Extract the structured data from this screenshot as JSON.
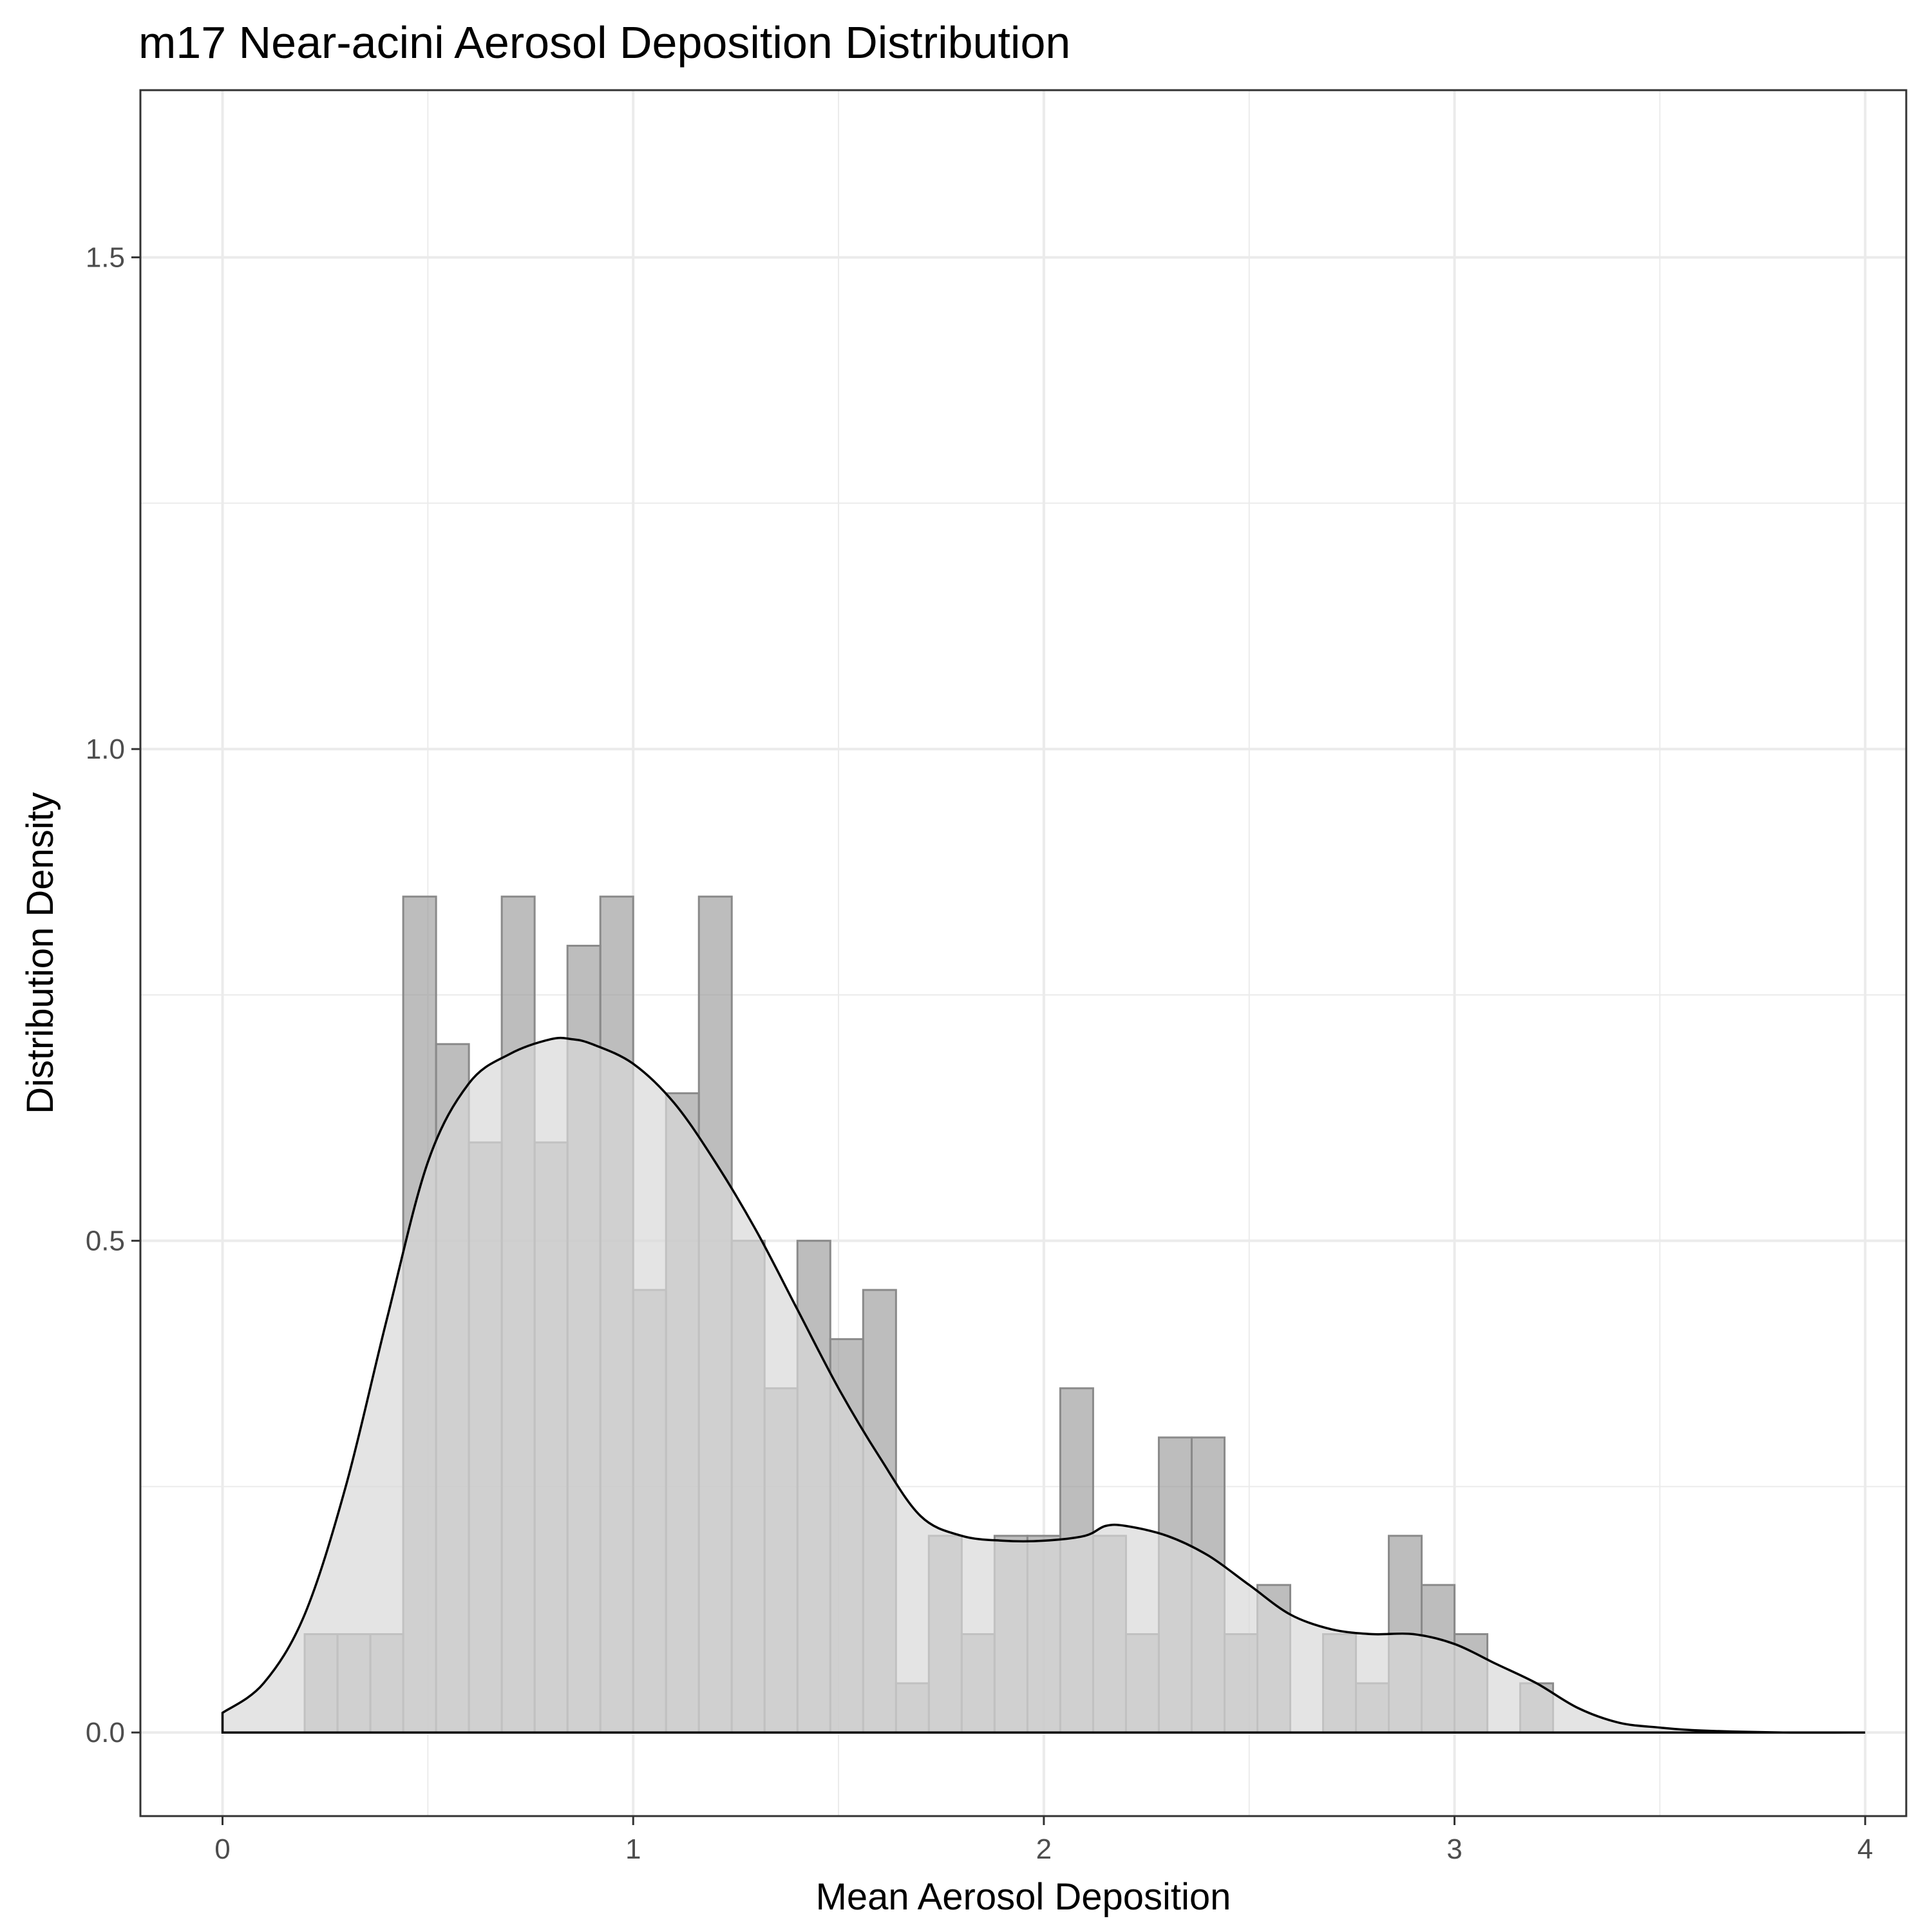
{
  "chart_data": {
    "type": "bar",
    "title": "m17 Near-acini Aerosol Deposition Distribution",
    "xlabel": "Mean Aerosol Deposition",
    "ylabel": "Distribution Density",
    "xlim": [
      -0.2,
      4.1
    ],
    "ylim": [
      -0.085,
      1.67
    ],
    "x_ticks": [
      0,
      1,
      2,
      3,
      4
    ],
    "x_tick_labels": [
      "0",
      "1",
      "2",
      "3",
      "4"
    ],
    "y_ticks": [
      0.0,
      0.5,
      1.0,
      1.5
    ],
    "y_tick_labels": [
      "0.0",
      "0.5",
      "1.0",
      "1.5"
    ],
    "grid": true,
    "legend": "none",
    "histogram": {
      "bin_width": 0.08,
      "bins": [
        {
          "x0": 0.2,
          "x1": 0.28,
          "density": 0.1
        },
        {
          "x0": 0.28,
          "x1": 0.36,
          "density": 0.1
        },
        {
          "x0": 0.36,
          "x1": 0.44,
          "density": 0.1
        },
        {
          "x0": 0.44,
          "x1": 0.52,
          "density": 0.85
        },
        {
          "x0": 0.52,
          "x1": 0.6,
          "density": 0.7
        },
        {
          "x0": 0.6,
          "x1": 0.68,
          "density": 0.6
        },
        {
          "x0": 0.68,
          "x1": 0.76,
          "density": 0.85
        },
        {
          "x0": 0.76,
          "x1": 0.84,
          "density": 0.6
        },
        {
          "x0": 0.84,
          "x1": 0.92,
          "density": 0.8
        },
        {
          "x0": 0.92,
          "x1": 1.0,
          "density": 0.85
        },
        {
          "x0": 1.0,
          "x1": 1.08,
          "density": 0.45
        },
        {
          "x0": 1.08,
          "x1": 1.16,
          "density": 0.65
        },
        {
          "x0": 1.16,
          "x1": 1.24,
          "density": 0.85
        },
        {
          "x0": 1.24,
          "x1": 1.32,
          "density": 0.5
        },
        {
          "x0": 1.32,
          "x1": 1.4,
          "density": 0.35
        },
        {
          "x0": 1.4,
          "x1": 1.48,
          "density": 0.5
        },
        {
          "x0": 1.48,
          "x1": 1.56,
          "density": 0.4
        },
        {
          "x0": 1.56,
          "x1": 1.64,
          "density": 0.45
        },
        {
          "x0": 1.64,
          "x1": 1.72,
          "density": 0.05
        },
        {
          "x0": 1.72,
          "x1": 1.8,
          "density": 0.2
        },
        {
          "x0": 1.8,
          "x1": 1.88,
          "density": 0.1
        },
        {
          "x0": 1.88,
          "x1": 1.96,
          "density": 0.2
        },
        {
          "x0": 1.96,
          "x1": 2.04,
          "density": 0.2
        },
        {
          "x0": 2.04,
          "x1": 2.12,
          "density": 0.35
        },
        {
          "x0": 2.12,
          "x1": 2.2,
          "density": 0.2
        },
        {
          "x0": 2.2,
          "x1": 2.28,
          "density": 0.1
        },
        {
          "x0": 2.28,
          "x1": 2.36,
          "density": 0.3
        },
        {
          "x0": 2.36,
          "x1": 2.44,
          "density": 0.3
        },
        {
          "x0": 2.44,
          "x1": 2.52,
          "density": 0.1
        },
        {
          "x0": 2.52,
          "x1": 2.6,
          "density": 0.15
        },
        {
          "x0": 2.6,
          "x1": 2.68,
          "density": 0.0
        },
        {
          "x0": 2.68,
          "x1": 2.76,
          "density": 0.1
        },
        {
          "x0": 2.76,
          "x1": 2.84,
          "density": 0.05
        },
        {
          "x0": 2.84,
          "x1": 2.92,
          "density": 0.2
        },
        {
          "x0": 2.92,
          "x1": 3.0,
          "density": 0.15
        },
        {
          "x0": 3.0,
          "x1": 3.08,
          "density": 0.1
        },
        {
          "x0": 3.08,
          "x1": 3.16,
          "density": 0.0
        },
        {
          "x0": 3.16,
          "x1": 3.24,
          "density": 0.05
        }
      ]
    },
    "density_curve": {
      "x": [
        0.0,
        0.1,
        0.2,
        0.3,
        0.4,
        0.5,
        0.6,
        0.7,
        0.8,
        0.85,
        0.9,
        1.0,
        1.1,
        1.2,
        1.3,
        1.4,
        1.5,
        1.6,
        1.7,
        1.8,
        1.9,
        2.0,
        2.1,
        2.15,
        2.2,
        2.3,
        2.4,
        2.5,
        2.6,
        2.7,
        2.8,
        2.9,
        3.0,
        3.1,
        3.2,
        3.3,
        3.4,
        3.5,
        3.6,
        3.8,
        4.0
      ],
      "y": [
        0.02,
        0.05,
        0.12,
        0.25,
        0.42,
        0.58,
        0.66,
        0.69,
        0.705,
        0.705,
        0.7,
        0.68,
        0.64,
        0.58,
        0.51,
        0.43,
        0.35,
        0.28,
        0.22,
        0.2,
        0.195,
        0.195,
        0.2,
        0.21,
        0.21,
        0.2,
        0.18,
        0.15,
        0.12,
        0.105,
        0.1,
        0.1,
        0.09,
        0.07,
        0.05,
        0.025,
        0.01,
        0.005,
        0.002,
        0.0,
        0.0
      ]
    }
  }
}
